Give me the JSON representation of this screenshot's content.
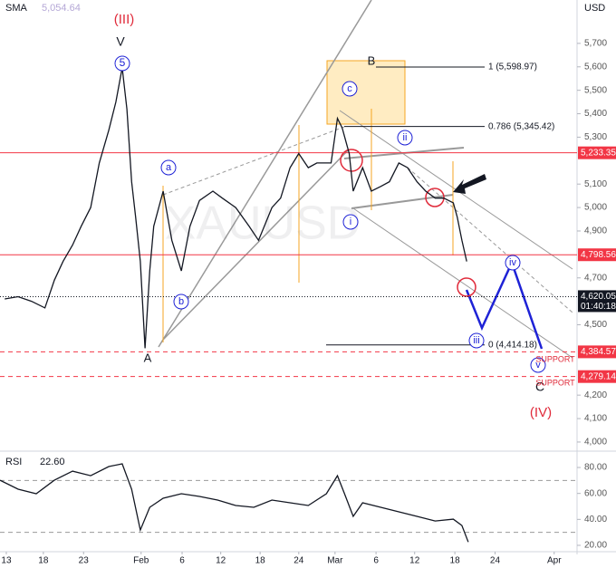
{
  "chart_data": [
    {
      "type": "line",
      "watermark": "XAUUSD",
      "currency": "USD",
      "sma": {
        "name": "SMA",
        "value": 5054.64,
        "value_label": "5,054.64"
      },
      "xlim": [
        0,
        73.2
      ],
      "ylim": [
        3965,
        5885
      ],
      "x": [
        0.6,
        2.3,
        4.0,
        5.7,
        6.9,
        8.0,
        9.2,
        10.3,
        11.5,
        12.6,
        13.8,
        14.7,
        15.5,
        16.1,
        16.7,
        17.2,
        17.8,
        18.4,
        19.0,
        19.5,
        20.7,
        21.8,
        23.0,
        24.1,
        25.3,
        27.0,
        28.2,
        29.9,
        31.6,
        32.8,
        34.5,
        35.6,
        36.8,
        37.9,
        39.1,
        40.2,
        42.0,
        42.8,
        43.4,
        44.3,
        44.8,
        46.0,
        47.1,
        48.3,
        49.4,
        50.6,
        51.7,
        52.9,
        54.0,
        55.2,
        56.3,
        57.5,
        58.0,
        58.6,
        59.2
      ],
      "series": [
        {
          "name": "XAUUSD",
          "color": "#131722",
          "values": [
            4610,
            4620,
            4600,
            4572,
            4690,
            4770,
            4840,
            4920,
            5000,
            5190,
            5330,
            5450,
            5596,
            5420,
            5110,
            4960,
            4770,
            4400,
            4730,
            4920,
            5070,
            4860,
            4730,
            4920,
            5030,
            5070,
            5040,
            5000,
            4920,
            4860,
            5000,
            5040,
            5170,
            5230,
            5170,
            5190,
            5190,
            5380,
            5340,
            5230,
            5070,
            5170,
            5070,
            5090,
            5110,
            5190,
            5170,
            5110,
            5070,
            5040,
            5040,
            5020,
            4960,
            4860,
            4770
          ]
        }
      ],
      "yticks": [
        {
          "value": 5700,
          "label": "5,700"
        },
        {
          "value": 5600,
          "label": "5,600"
        },
        {
          "value": 5500,
          "label": "5,500"
        },
        {
          "value": 5400,
          "label": "5,400"
        },
        {
          "value": 5300,
          "label": "5,300"
        },
        {
          "value": 5100,
          "label": "5,100"
        },
        {
          "value": 5000,
          "label": "5,000"
        },
        {
          "value": 4900,
          "label": "4,900"
        },
        {
          "value": 4700,
          "label": "4,700"
        },
        {
          "value": 4500,
          "label": "4,500"
        },
        {
          "value": 4200,
          "label": "4,200"
        },
        {
          "value": 4100,
          "label": "4,100"
        },
        {
          "value": 4000,
          "label": "4,000"
        }
      ],
      "price_lines": [
        {
          "value": 5233.35,
          "label": "5,233.35",
          "color": "#f23645",
          "style": "solid"
        },
        {
          "value": 4798.56,
          "label": "4,798.56",
          "color": "#f23645",
          "style": "solid"
        },
        {
          "value": 4620.05,
          "label": "4,620.05",
          "countdown": "01:40:18",
          "color": "#131722",
          "style": "dotted"
        },
        {
          "value": 4384.57,
          "label": "4,384.57",
          "color": "#f23645",
          "style": "dashed"
        },
        {
          "value": 4279.14,
          "label": "4,279.14",
          "color": "#f23645",
          "style": "dashed"
        }
      ],
      "fib_levels": [
        {
          "value": 5598.97,
          "label": "1 (5,598.97)"
        },
        {
          "value": 5345.42,
          "label": "0.786 (5,345.42)"
        },
        {
          "value": 4414.18,
          "label": "0 (4,414.18)"
        }
      ],
      "annotations": [
        "(III)",
        "V",
        "5",
        "a",
        "b",
        "A",
        "B",
        "c",
        "ii",
        "i",
        "iii",
        "iv",
        "v",
        "C",
        "(IV)",
        "SUPPORT",
        "SUPPORT"
      ]
    },
    {
      "type": "line",
      "title": "RSI",
      "value_label": "22.60",
      "xlim": [
        0,
        73.2
      ],
      "ylim": [
        15.8,
        91.2
      ],
      "x": [
        0,
        2.3,
        4.6,
        6.9,
        9.2,
        11.5,
        13.8,
        15.5,
        16.7,
        17.8,
        19.0,
        20.7,
        23.0,
        25.3,
        27.6,
        29.9,
        32.2,
        34.5,
        36.8,
        39.1,
        41.4,
        42.8,
        43.7,
        44.8,
        46.0,
        48.3,
        50.6,
        52.9,
        55.2,
        57.5,
        58.6,
        59.4
      ],
      "series": [
        {
          "name": "RSI",
          "color": "#131722",
          "values": [
            70.2,
            63.3,
            59.8,
            70.2,
            77.2,
            73.7,
            80.7,
            82.8,
            63.3,
            31.8,
            49.3,
            56.3,
            59.8,
            57.7,
            54.9,
            50.7,
            49.3,
            54.9,
            52.8,
            50.7,
            59.8,
            73.7,
            59.8,
            42.3,
            52.8,
            49.3,
            45.8,
            42.3,
            38.8,
            40.2,
            35.3,
            22.6
          ]
        }
      ],
      "levels": [
        70,
        30
      ],
      "yticks": [
        {
          "value": 80,
          "label": "80.00"
        },
        {
          "value": 60,
          "label": "60.00"
        },
        {
          "value": 40,
          "label": "40.00"
        },
        {
          "value": 20,
          "label": "20.00"
        }
      ],
      "xticks": [
        {
          "value": 0.8,
          "label": "13"
        },
        {
          "value": 5.5,
          "label": "18"
        },
        {
          "value": 10.6,
          "label": "23"
        },
        {
          "value": 17.9,
          "label": "Feb"
        },
        {
          "value": 23.1,
          "label": "6"
        },
        {
          "value": 28,
          "label": "12"
        },
        {
          "value": 33,
          "label": "18"
        },
        {
          "value": 37.9,
          "label": "24"
        },
        {
          "value": 42.5,
          "label": "Mar"
        },
        {
          "value": 47.7,
          "label": "6"
        },
        {
          "value": 52.6,
          "label": "12"
        },
        {
          "value": 57.7,
          "label": "18"
        },
        {
          "value": 62.8,
          "label": "24"
        },
        {
          "value": 70.3,
          "label": "Apr"
        }
      ]
    }
  ]
}
